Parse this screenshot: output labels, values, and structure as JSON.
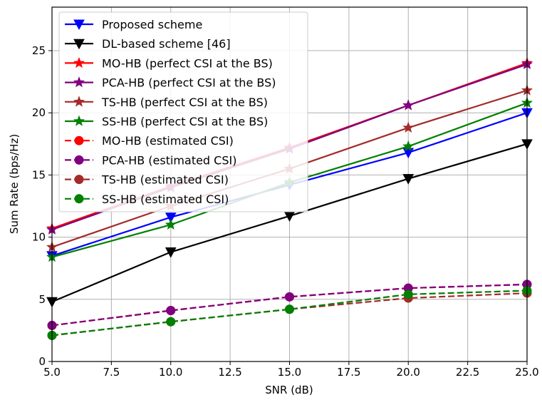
{
  "chart_data": {
    "type": "line",
    "xlabel": "SNR (dB)",
    "ylabel": "Sum Rate (bps/Hz)",
    "xlim": [
      5,
      25
    ],
    "ylim": [
      0,
      28.5
    ],
    "xticks": [
      5.0,
      7.5,
      10.0,
      12.5,
      15.0,
      17.5,
      20.0,
      22.5,
      25.0
    ],
    "xtick_labels": [
      "5.0",
      "7.5",
      "10.0",
      "12.5",
      "15.0",
      "17.5",
      "20.0",
      "22.5",
      "25.0"
    ],
    "yticks": [
      0,
      5,
      10,
      15,
      20,
      25
    ],
    "ytick_labels": [
      "0",
      "5",
      "10",
      "15",
      "20",
      "25"
    ],
    "grid": true,
    "legend_position": "top-left",
    "x": [
      5,
      10,
      15,
      20,
      25
    ],
    "series": [
      {
        "name": "Proposed scheme",
        "values": [
          8.5,
          11.6,
          14.2,
          16.8,
          20.0
        ],
        "color": "#0000ff",
        "marker": "triangle-down",
        "linestyle": "solid"
      },
      {
        "name": "DL-based scheme [46]",
        "values": [
          4.8,
          8.8,
          11.7,
          14.7,
          17.5
        ],
        "color": "#000000",
        "marker": "triangle-down",
        "linestyle": "solid"
      },
      {
        "name": "MO-HB (perfect CSI at the BS)",
        "values": [
          10.7,
          14.1,
          17.2,
          20.6,
          24.0
        ],
        "color": "#ff0000",
        "marker": "star",
        "linestyle": "solid"
      },
      {
        "name": "PCA-HB (perfect CSI at the BS)",
        "values": [
          10.6,
          14.0,
          17.1,
          20.6,
          23.9
        ],
        "color": "#800080",
        "marker": "star",
        "linestyle": "solid"
      },
      {
        "name": "TS-HB (perfect CSI at the BS)",
        "values": [
          9.2,
          12.5,
          15.5,
          18.8,
          21.8
        ],
        "color": "#a52a2a",
        "marker": "star",
        "linestyle": "solid"
      },
      {
        "name": "SS-HB (perfect CSI at the BS)",
        "values": [
          8.4,
          11.0,
          14.4,
          17.3,
          20.8
        ],
        "color": "#008000",
        "marker": "star",
        "linestyle": "solid"
      },
      {
        "name": "MO-HB (estimated CSI)",
        "values": [
          2.9,
          4.1,
          5.2,
          5.9,
          6.2
        ],
        "color": "#ff0000",
        "marker": "circle",
        "linestyle": "dashed"
      },
      {
        "name": "PCA-HB (estimated CSI)",
        "values": [
          2.9,
          4.1,
          5.2,
          5.9,
          6.2
        ],
        "color": "#800080",
        "marker": "circle",
        "linestyle": "dashed"
      },
      {
        "name": "TS-HB (estimated CSI)",
        "values": [
          2.1,
          3.2,
          4.2,
          5.1,
          5.5
        ],
        "color": "#a52a2a",
        "marker": "circle",
        "linestyle": "dashed"
      },
      {
        "name": "SS-HB (estimated CSI)",
        "values": [
          2.1,
          3.2,
          4.2,
          5.4,
          5.7
        ],
        "color": "#008000",
        "marker": "circle",
        "linestyle": "dashed"
      }
    ]
  }
}
